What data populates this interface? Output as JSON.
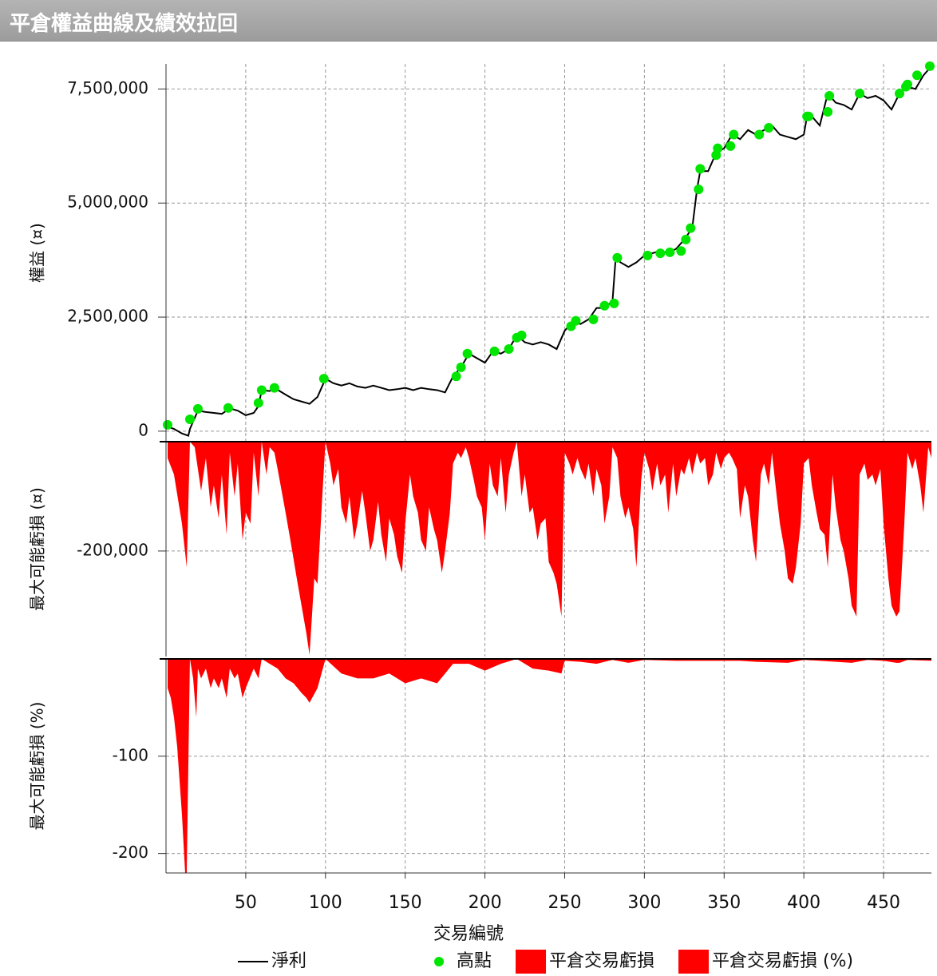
{
  "title": "平倉權益曲線及績效拉回",
  "chart_data": [
    {
      "type": "line",
      "ylabel": "權益 (¤)",
      "xlim": [
        0,
        480
      ],
      "ylim": [
        -230000,
        8050000
      ],
      "yticks": [
        0,
        {
          "value": 2500000,
          "label": "2,500,000"
        },
        {
          "value": 5000000,
          "label": "5,000,000"
        },
        {
          "value": 7500000,
          "label": "7,500,000"
        }
      ],
      "grid": true,
      "series": [
        {
          "name": "淨利",
          "kind": "line",
          "color": "#000000",
          "x": [
            1,
            5,
            10,
            14,
            15,
            20,
            25,
            30,
            35,
            40,
            45,
            50,
            55,
            58,
            60,
            65,
            68,
            75,
            80,
            85,
            90,
            95,
            100,
            105,
            110,
            115,
            120,
            125,
            130,
            135,
            140,
            145,
            150,
            155,
            160,
            165,
            170,
            175,
            180,
            185,
            190,
            195,
            200,
            205,
            210,
            215,
            220,
            225,
            230,
            235,
            240,
            245,
            250,
            255,
            260,
            265,
            270,
            275,
            280,
            282,
            285,
            290,
            295,
            300,
            305,
            310,
            315,
            320,
            325,
            330,
            333,
            335,
            340,
            345,
            350,
            355,
            360,
            365,
            370,
            375,
            380,
            385,
            390,
            395,
            400,
            402,
            405,
            410,
            415,
            420,
            425,
            430,
            435,
            440,
            445,
            450,
            455,
            460,
            465,
            470,
            475,
            480
          ],
          "values": [
            100000,
            50000,
            -50000,
            -100000,
            50000,
            450000,
            420000,
            400000,
            380000,
            500000,
            450000,
            350000,
            400000,
            550000,
            900000,
            880000,
            950000,
            800000,
            700000,
            650000,
            600000,
            750000,
            1150000,
            1050000,
            1000000,
            1050000,
            980000,
            950000,
            1000000,
            950000,
            900000,
            920000,
            950000,
            900000,
            950000,
            920000,
            900000,
            850000,
            1200000,
            1400000,
            1700000,
            1600000,
            1500000,
            1750000,
            1700000,
            1800000,
            2100000,
            1950000,
            1900000,
            1950000,
            1900000,
            1800000,
            2200000,
            2400000,
            2350000,
            2450000,
            2700000,
            2700000,
            2850000,
            3800000,
            3700000,
            3600000,
            3700000,
            3850000,
            3900000,
            3950000,
            3900000,
            4000000,
            4200000,
            4450000,
            5300000,
            5700000,
            5700000,
            6100000,
            6200000,
            6500000,
            6400000,
            6600000,
            6500000,
            6600000,
            6700000,
            6500000,
            6450000,
            6400000,
            6500000,
            6900000,
            6900000,
            6700000,
            7400000,
            7200000,
            7150000,
            7050000,
            7400000,
            7300000,
            7350000,
            7250000,
            7050000,
            7400000,
            7550000,
            7500000,
            7800000,
            8000000
          ]
        },
        {
          "name": "高點",
          "kind": "scatter",
          "color": "#00e600",
          "x": [
            1,
            15,
            20,
            39,
            58,
            60,
            68,
            99,
            182,
            185,
            189,
            206,
            215,
            220,
            223,
            254,
            257,
            268,
            275,
            281,
            283,
            302,
            310,
            316,
            323,
            326,
            329,
            334,
            335,
            345,
            346,
            354,
            356,
            372,
            378,
            402,
            403,
            415,
            416,
            435,
            460,
            464,
            465,
            471,
            479
          ],
          "values": [
            140000,
            260000,
            490000,
            510000,
            620000,
            900000,
            950000,
            1150000,
            1200000,
            1400000,
            1700000,
            1750000,
            1800000,
            2050000,
            2100000,
            2300000,
            2420000,
            2450000,
            2750000,
            2800000,
            3800000,
            3850000,
            3900000,
            3920000,
            3950000,
            4200000,
            4450000,
            5300000,
            5750000,
            6050000,
            6200000,
            6250000,
            6500000,
            6500000,
            6650000,
            6900000,
            6900000,
            7000000,
            7350000,
            7400000,
            7400000,
            7550000,
            7600000,
            7800000,
            8000000
          ]
        }
      ]
    },
    {
      "type": "area",
      "ylabel": "最大可能虧損 (¤)",
      "xlim": [
        0,
        480
      ],
      "ylim": [
        -393000,
        0
      ],
      "yticks": [
        {
          "value": -200000,
          "label": "-200,000"
        }
      ],
      "grid": true,
      "series": [
        {
          "name": "平倉交易虧損",
          "color": "#ff0000",
          "x": [
            1,
            5,
            10,
            13,
            15,
            18,
            20,
            22,
            25,
            28,
            30,
            33,
            35,
            38,
            40,
            43,
            45,
            48,
            50,
            53,
            55,
            58,
            60,
            63,
            65,
            68,
            70,
            75,
            78,
            82,
            85,
            88,
            90,
            93,
            95,
            98,
            100,
            103,
            105,
            108,
            110,
            113,
            115,
            118,
            120,
            123,
            125,
            128,
            130,
            133,
            135,
            138,
            140,
            143,
            145,
            148,
            150,
            153,
            155,
            158,
            160,
            163,
            165,
            168,
            170,
            173,
            175,
            178,
            180,
            183,
            185,
            188,
            190,
            193,
            195,
            198,
            200,
            203,
            205,
            208,
            210,
            213,
            215,
            218,
            220,
            223,
            225,
            228,
            230,
            233,
            235,
            238,
            240,
            243,
            245,
            248,
            250,
            253,
            255,
            258,
            260,
            263,
            265,
            268,
            270,
            273,
            275,
            278,
            280,
            283,
            285,
            288,
            290,
            293,
            295,
            298,
            300,
            303,
            305,
            308,
            310,
            313,
            315,
            318,
            320,
            323,
            325,
            328,
            330,
            333,
            335,
            338,
            340,
            343,
            345,
            348,
            350,
            353,
            355,
            358,
            360,
            363,
            365,
            368,
            370,
            373,
            375,
            378,
            380,
            383,
            385,
            388,
            390,
            393,
            395,
            398,
            400,
            403,
            405,
            408,
            410,
            413,
            415,
            418,
            420,
            423,
            425,
            428,
            430,
            433,
            435,
            438,
            440,
            443,
            445,
            448,
            450,
            453,
            455,
            458,
            460,
            463,
            465,
            468,
            470,
            473,
            475,
            478,
            480
          ],
          "values": [
            -30000,
            -60000,
            -150000,
            -230000,
            0,
            -10000,
            -50000,
            -90000,
            -30000,
            -120000,
            -80000,
            -140000,
            -60000,
            -170000,
            -20000,
            -100000,
            -40000,
            -180000,
            -130000,
            -150000,
            -20000,
            -100000,
            0,
            -60000,
            -10000,
            -20000,
            -50000,
            -130000,
            -180000,
            -250000,
            -300000,
            -350000,
            -390000,
            -250000,
            -260000,
            -100000,
            0,
            -40000,
            -80000,
            -50000,
            -120000,
            -150000,
            -100000,
            -180000,
            -150000,
            -90000,
            -130000,
            -200000,
            -180000,
            -110000,
            -170000,
            -220000,
            -140000,
            -170000,
            -210000,
            -240000,
            -150000,
            -60000,
            -100000,
            -130000,
            -180000,
            -200000,
            -120000,
            -160000,
            -180000,
            -240000,
            -200000,
            -130000,
            -40000,
            -20000,
            -30000,
            -10000,
            -30000,
            -70000,
            -100000,
            -120000,
            -180000,
            -40000,
            -80000,
            -100000,
            -30000,
            -130000,
            -60000,
            -20000,
            0,
            -100000,
            -60000,
            -130000,
            -120000,
            -180000,
            -150000,
            -140000,
            -220000,
            -240000,
            -260000,
            -320000,
            -20000,
            -40000,
            -60000,
            -30000,
            -50000,
            -70000,
            -40000,
            -100000,
            -50000,
            -80000,
            -150000,
            -100000,
            -10000,
            -30000,
            -100000,
            -140000,
            -120000,
            -160000,
            -230000,
            -70000,
            -20000,
            -50000,
            -90000,
            -40000,
            -80000,
            -60000,
            -130000,
            -40000,
            -100000,
            -50000,
            -60000,
            -30000,
            -60000,
            -20000,
            -40000,
            -30000,
            -80000,
            -60000,
            -20000,
            -50000,
            -30000,
            -20000,
            -30000,
            -50000,
            -140000,
            -80000,
            -100000,
            -180000,
            -220000,
            -60000,
            -40000,
            -80000,
            -20000,
            -100000,
            -150000,
            -200000,
            -250000,
            -260000,
            -230000,
            -150000,
            -40000,
            -30000,
            -80000,
            -130000,
            -160000,
            -170000,
            -230000,
            -60000,
            -120000,
            -180000,
            -200000,
            -250000,
            -300000,
            -320000,
            -60000,
            -40000,
            -70000,
            -60000,
            -80000,
            -50000,
            -150000,
            -250000,
            -300000,
            -320000,
            -310000,
            -150000,
            -20000,
            -50000,
            -30000,
            -80000,
            -130000,
            -10000,
            -30000
          ]
        }
      ]
    },
    {
      "type": "area",
      "ylabel": "最大可能虧損 (%)",
      "xlabel": "交易編號",
      "xlim": [
        0,
        480
      ],
      "ylim": [
        -220,
        0
      ],
      "xticks": [
        50,
        100,
        150,
        200,
        250,
        300,
        350,
        400,
        450
      ],
      "yticks": [
        -100,
        -200
      ],
      "grid": true,
      "series": [
        {
          "name": "平倉交易虧損 (%)",
          "color": "#ff0000",
          "x": [
            1,
            3,
            5,
            7,
            10,
            12,
            13,
            15,
            17,
            19,
            20,
            22,
            25,
            28,
            30,
            33,
            35,
            38,
            40,
            43,
            45,
            48,
            50,
            55,
            58,
            60,
            65,
            70,
            75,
            80,
            85,
            88,
            90,
            95,
            100,
            110,
            120,
            130,
            140,
            150,
            160,
            170,
            180,
            190,
            200,
            210,
            220,
            230,
            240,
            248,
            250,
            260,
            270,
            280,
            290,
            300,
            320,
            340,
            360,
            370,
            390,
            400,
            410,
            430,
            440,
            450,
            458,
            460,
            465,
            480
          ],
          "values": [
            -30,
            -40,
            -60,
            -90,
            -160,
            -220,
            -220,
            0,
            -20,
            -60,
            -10,
            -20,
            -10,
            -30,
            -20,
            -30,
            -20,
            -40,
            -10,
            -20,
            -15,
            -40,
            -30,
            -10,
            -20,
            0,
            -5,
            -10,
            -20,
            -25,
            -35,
            -40,
            -45,
            -30,
            0,
            -15,
            -20,
            -20,
            -15,
            -25,
            -20,
            -25,
            -5,
            -5,
            -12,
            -5,
            0,
            -10,
            -12,
            -15,
            -2,
            -3,
            -5,
            -1,
            -4,
            -1,
            -2,
            -2,
            -2,
            -3,
            -4,
            -1,
            -2,
            -4,
            -1,
            -2,
            -4,
            -4,
            -1,
            -2
          ]
        }
      ]
    }
  ]
}
